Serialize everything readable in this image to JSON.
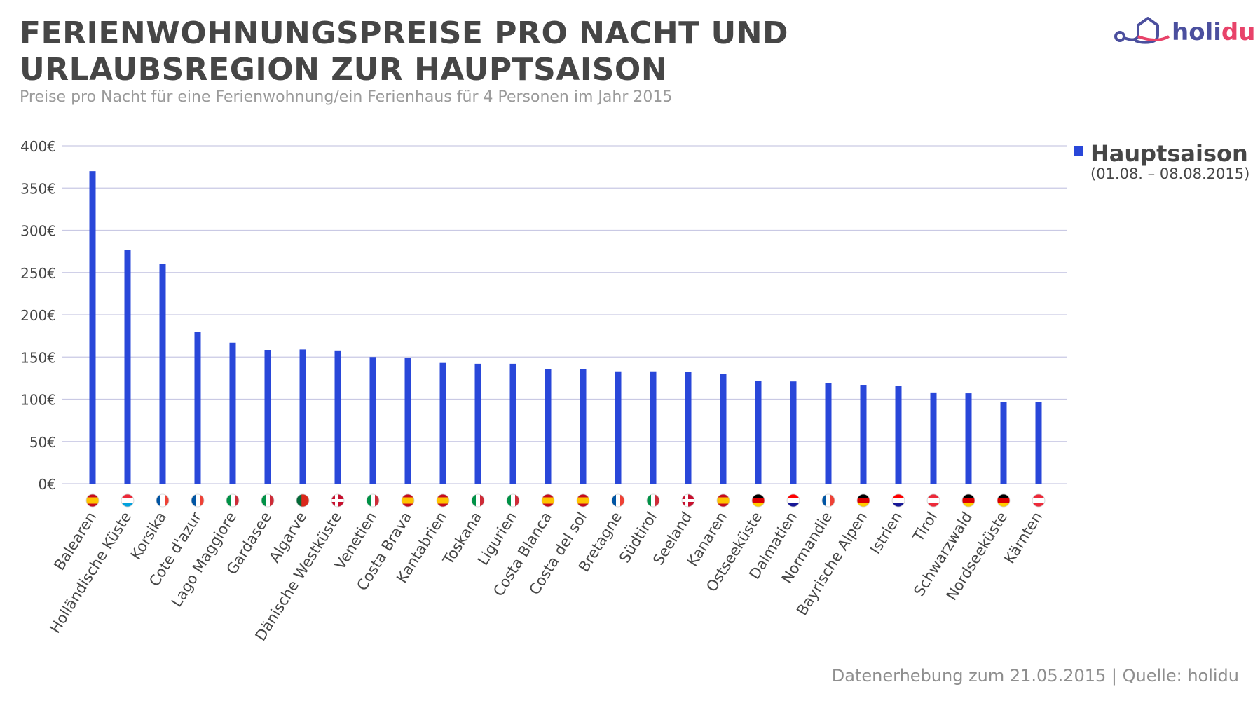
{
  "header": {
    "title_line1": "FERIENWOHNUNGSPREISE PRO NACHT UND",
    "title_line2": "URLAUBSREGION ZUR HAUPTSAISON",
    "subtitle": "Preise pro Nacht für eine Ferienwohnung/ein Ferienhaus für 4 Personen im Jahr 2015"
  },
  "logo": {
    "text_a": "holi",
    "text_b": "du"
  },
  "legend": {
    "name": "Hauptsaison",
    "period": "(01.08. – 08.08.2015)"
  },
  "footer": "Datenerhebung zum 21.05.2015 | Quelle: holidu",
  "colors": {
    "bar": "#2947d9",
    "grid": "#c9c9e4",
    "axis_text": "#464646"
  },
  "chart_data": {
    "type": "bar",
    "title": "FERIENWOHNUNGSPREISE PRO NACHT UND URLAUBSREGION ZUR HAUPTSAISON",
    "xlabel": "",
    "ylabel": "",
    "ylim": [
      0,
      400
    ],
    "yticks": [
      0,
      50,
      100,
      150,
      200,
      250,
      300,
      350,
      400
    ],
    "ytick_labels": [
      "0€",
      "50€",
      "100€",
      "150€",
      "200€",
      "250€",
      "300€",
      "350€",
      "400€"
    ],
    "grid": true,
    "legend_position": "top-right",
    "categories": [
      "Balearen",
      "Holländische Küste",
      "Korsika",
      "Cote d'azur",
      "Lago Maggiore",
      "Gardasee",
      "Algarve",
      "Dänische Westküste",
      "Venetien",
      "Costa Brava",
      "Kantabrien",
      "Toskana",
      "Ligurien",
      "Costa Blanca",
      "Costa del sol",
      "Bretagne",
      "Südtirol",
      "Seeland",
      "Kanaren",
      "Ostseeküste",
      "Dalmatien",
      "Normandie",
      "Bayrische Alpen",
      "Istrien",
      "Tirol",
      "Schwarzwald",
      "Nordseeküste",
      "Kärnten"
    ],
    "flags": [
      "ES",
      "LU",
      "FR",
      "FR",
      "IT",
      "IT",
      "PT",
      "DK",
      "IT",
      "ES",
      "ES",
      "IT",
      "IT",
      "ES",
      "ES",
      "FR",
      "IT",
      "DK",
      "ES",
      "DE",
      "HR",
      "FR",
      "DE",
      "HR",
      "AT",
      "DE",
      "DE",
      "AT"
    ],
    "series": [
      {
        "name": "Hauptsaison",
        "values": [
          370,
          277,
          260,
          180,
          167,
          158,
          159,
          157,
          150,
          149,
          143,
          142,
          142,
          136,
          136,
          133,
          133,
          132,
          130,
          122,
          121,
          119,
          117,
          116,
          108,
          107,
          97,
          97
        ]
      }
    ]
  }
}
